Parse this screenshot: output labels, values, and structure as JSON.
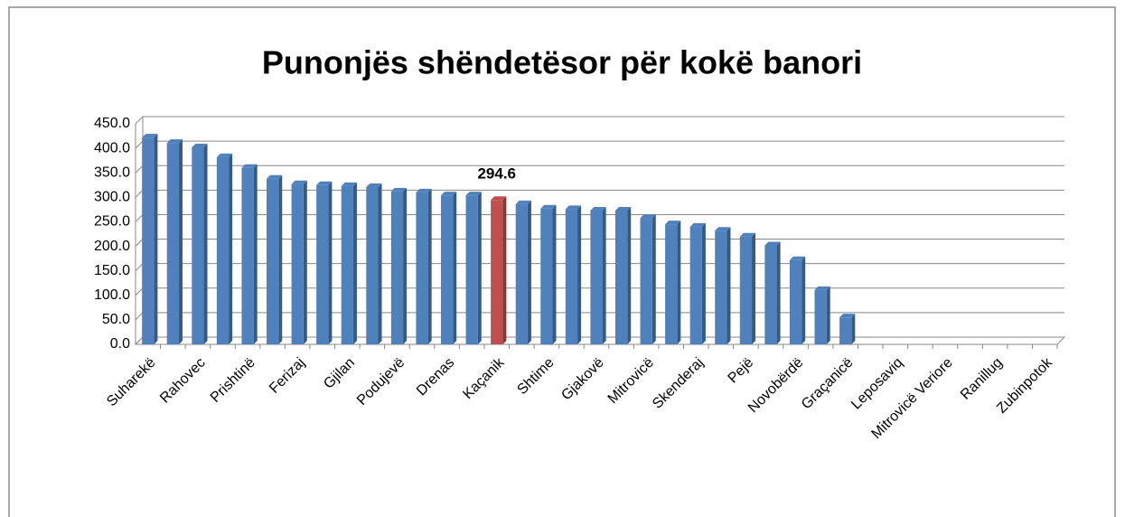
{
  "chart_data": {
    "type": "bar",
    "title": "Punonjës shëndetësor për kokë banori",
    "categories": [
      "Suharekë",
      null,
      "Rahovec",
      null,
      "Prishtinë",
      null,
      "Ferizaj",
      null,
      "Gjilan",
      null,
      "Podujevë",
      null,
      "Drenas",
      null,
      "Kaçanik",
      null,
      "Shtime",
      null,
      "Gjakovë",
      null,
      "Mitrovicë",
      null,
      "Skenderaj",
      null,
      "Pejë",
      null,
      "Novobërdë",
      null,
      "Graçanicë",
      null,
      "Leposaviq",
      null,
      "Mitrovicë Veriore",
      null,
      "Ranillug",
      null,
      "Zubinpotok"
    ],
    "values": [
      422,
      411,
      402,
      382,
      360,
      338,
      327,
      325,
      323,
      321,
      312,
      310,
      304,
      304,
      294.6,
      286,
      277,
      276,
      273,
      273,
      258,
      245,
      240,
      232,
      220,
      202,
      172,
      111,
      55,
      0,
      0,
      0,
      0,
      0,
      0,
      0,
      0
    ],
    "value_labels": [
      null,
      null,
      null,
      null,
      null,
      null,
      null,
      null,
      null,
      null,
      null,
      null,
      null,
      null,
      "294.6",
      null,
      null,
      null,
      null,
      null,
      null,
      null,
      null,
      null,
      null,
      null,
      null,
      null,
      null,
      null,
      null,
      null,
      null,
      null,
      null,
      null,
      null
    ],
    "colors": [
      "#4f81bd",
      "#4f81bd",
      "#4f81bd",
      "#4f81bd",
      "#4f81bd",
      "#4f81bd",
      "#4f81bd",
      "#4f81bd",
      "#4f81bd",
      "#4f81bd",
      "#4f81bd",
      "#4f81bd",
      "#4f81bd",
      "#4f81bd",
      "#c0504d",
      "#4f81bd",
      "#4f81bd",
      "#4f81bd",
      "#4f81bd",
      "#4f81bd",
      "#4f81bd",
      "#4f81bd",
      "#4f81bd",
      "#4f81bd",
      "#4f81bd",
      "#4f81bd",
      "#4f81bd",
      "#4f81bd",
      "#4f81bd",
      "#4f81bd",
      "#4f81bd",
      "#4f81bd",
      "#4f81bd",
      "#4f81bd",
      "#4f81bd",
      "#4f81bd",
      "#4f81bd"
    ],
    "ylim": [
      0,
      450
    ],
    "yticks": [
      {
        "value": 0,
        "label": "0.0"
      },
      {
        "value": 50,
        "label": "50.0"
      },
      {
        "value": 100,
        "label": "100.0"
      },
      {
        "value": 150,
        "label": "150.0"
      },
      {
        "value": 200,
        "label": "200.0"
      },
      {
        "value": 250,
        "label": "250.0"
      },
      {
        "value": 300,
        "label": "300.0"
      },
      {
        "value": 350,
        "label": "350.0"
      },
      {
        "value": 400,
        "label": "400.0"
      },
      {
        "value": 450,
        "label": "450.0"
      }
    ],
    "grid": true
  }
}
